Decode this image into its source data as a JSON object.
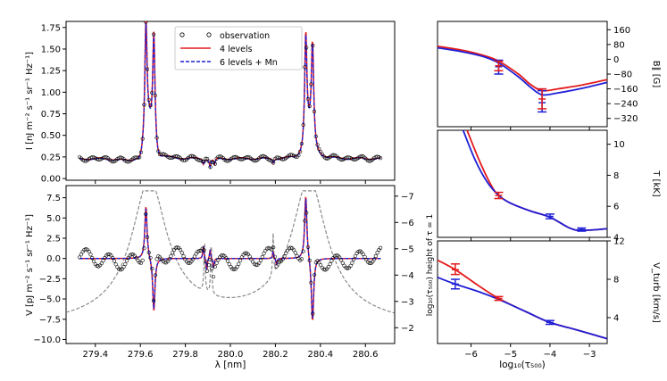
{
  "chart_data": [
    {
      "type": "line",
      "panel": "intensity",
      "ylabel": "I [nJ m⁻² s⁻¹ sr⁻¹ Hz⁻¹]",
      "xlim": [
        279.27,
        280.73
      ],
      "ylim": [
        -0.02,
        1.82
      ],
      "yticks": [
        "0.00",
        "0.25",
        "0.50",
        "0.75",
        "1.00",
        "1.25",
        "1.50",
        "1.75"
      ],
      "legend": [
        "observation",
        "4 levels",
        "6 levels + Mn"
      ],
      "legend_position": "top-center",
      "series": [
        {
          "name": "observation",
          "style": "open circles"
        },
        {
          "name": "4 levels",
          "color": "#e31a1c",
          "style": "solid"
        },
        {
          "name": "6 levels + Mn",
          "color": "#1f1fd6",
          "style": "dashed"
        }
      ]
    },
    {
      "type": "line",
      "panel": "circular polarization",
      "ylabel": "V [pJ m⁻² s⁻¹ sr⁻¹ Hz⁻¹]",
      "xlabel": "λ [nm]",
      "xticks": [
        "279.4",
        "279.6",
        "279.8",
        "280.0",
        "280.2",
        "280.4",
        "280.6"
      ],
      "xlim": [
        279.27,
        280.73
      ],
      "ylim": [
        -10.5,
        9.0
      ],
      "yticks": [
        "−10.0",
        "−7.5",
        "−5.0",
        "−2.5",
        "0.0",
        "2.5",
        "5.0",
        "7.5"
      ],
      "right_axis": {
        "label": "log₁₀(τ₅₀₀) height of τ = 1",
        "ticks": [
          "−7",
          "−6",
          "−5",
          "−4",
          "−3",
          "−2"
        ],
        "style": "gray dashed"
      }
    },
    {
      "type": "line",
      "panel": "magnetic field",
      "ylabel": "B∥ [G]",
      "xlim": [
        -6.85,
        -2.55
      ],
      "ylim": [
        -365,
        205
      ],
      "yticks": [
        "160",
        "80",
        "0",
        "−80",
        "−160",
        "−240",
        "−320"
      ],
      "series": [
        {
          "name": "4 levels",
          "color": "#e31a1c",
          "x": [
            -6.85,
            -6.2,
            -5.7,
            -5.3,
            -4.8,
            -4.5,
            -4.2,
            -3.8,
            -3.2,
            -2.55
          ],
          "y": [
            70,
            48,
            22,
            -10,
            -80,
            -135,
            -170,
            -160,
            -140,
            -110
          ]
        },
        {
          "name": "6 levels + Mn",
          "color": "#1f1fd6",
          "x": [
            -6.85,
            -6.2,
            -5.7,
            -5.3,
            -4.8,
            -4.5,
            -4.2,
            -3.8,
            -3.2,
            -2.55
          ],
          "y": [
            62,
            40,
            15,
            -20,
            -95,
            -150,
            -192,
            -182,
            -158,
            -125
          ]
        }
      ],
      "errorbars": [
        {
          "x": -5.3,
          "y": -40,
          "low": -80,
          "high": -5,
          "color": "#1f1fd6"
        },
        {
          "x": -5.3,
          "y": -35,
          "low": -62,
          "high": -10,
          "color": "#e31a1c"
        },
        {
          "x": -4.2,
          "y": -235,
          "low": -285,
          "high": -170,
          "color": "#1f1fd6"
        },
        {
          "x": -4.2,
          "y": -215,
          "low": -268,
          "high": -160,
          "color": "#e31a1c"
        }
      ]
    },
    {
      "type": "line",
      "panel": "temperature",
      "ylabel": "T [kK]",
      "xlim": [
        -6.85,
        -2.55
      ],
      "ylim": [
        4.0,
        10.9
      ],
      "yticks": [
        "4",
        "6",
        "8",
        "10"
      ],
      "series": [
        {
          "name": "4 levels",
          "color": "#e31a1c",
          "x": [
            -6.1,
            -5.8,
            -5.5,
            -5.3,
            -5.0,
            -4.5,
            -4.0,
            -3.5,
            -3.2,
            -2.55
          ],
          "y": [
            10.9,
            9.0,
            7.4,
            6.7,
            6.2,
            5.7,
            5.3,
            4.6,
            4.45,
            4.55
          ]
        },
        {
          "name": "6 levels + Mn",
          "color": "#1f1fd6",
          "x": [
            -6.2,
            -5.9,
            -5.6,
            -5.3,
            -5.0,
            -4.5,
            -4.0,
            -3.5,
            -3.2,
            -2.55
          ],
          "y": [
            10.9,
            9.0,
            7.6,
            6.7,
            6.2,
            5.7,
            5.3,
            4.6,
            4.45,
            4.55
          ]
        }
      ],
      "errorbars": [
        {
          "x": -5.3,
          "y": 6.7,
          "low": 6.5,
          "high": 6.9,
          "color": "#e31a1c"
        },
        {
          "x": -4.0,
          "y": 5.35,
          "low": 5.2,
          "high": 5.5,
          "color": "#1f1fd6"
        },
        {
          "x": -3.2,
          "y": 4.5,
          "low": 4.4,
          "high": 4.6,
          "color": "#1f1fd6"
        }
      ]
    },
    {
      "type": "line",
      "panel": "turbulence",
      "ylabel": "V_turb [km/s]",
      "xlabel": "log₁₀(τ₅₀₀)",
      "xticks": [
        "−6",
        "−5",
        "−4",
        "−3"
      ],
      "xlim": [
        -6.85,
        -2.55
      ],
      "ylim": [
        1.3,
        12.0
      ],
      "yticks": [
        "4",
        "8",
        "12"
      ],
      "series": [
        {
          "name": "4 levels",
          "color": "#e31a1c",
          "x": [
            -6.85,
            -6.4,
            -5.8,
            -5.3,
            -4.6,
            -4.0,
            -3.3,
            -2.55
          ],
          "y": [
            10.0,
            9.0,
            7.3,
            6.0,
            4.6,
            3.5,
            2.7,
            1.8
          ]
        },
        {
          "name": "6 levels + Mn",
          "color": "#1f1fd6",
          "x": [
            -6.85,
            -6.4,
            -5.8,
            -5.3,
            -4.6,
            -4.0,
            -3.3,
            -2.55
          ],
          "y": [
            8.2,
            7.5,
            6.7,
            5.9,
            4.6,
            3.5,
            2.7,
            1.8
          ]
        }
      ],
      "errorbars": [
        {
          "x": -6.4,
          "y": 9.0,
          "low": 8.5,
          "high": 9.6,
          "color": "#e31a1c"
        },
        {
          "x": -6.4,
          "y": 7.5,
          "low": 7.0,
          "high": 8.0,
          "color": "#1f1fd6"
        },
        {
          "x": -5.3,
          "y": 6.0,
          "low": 5.8,
          "high": 6.2,
          "color": "#e31a1c"
        },
        {
          "x": -4.0,
          "y": 3.5,
          "low": 3.3,
          "high": 3.7,
          "color": "#1f1fd6"
        }
      ]
    }
  ]
}
